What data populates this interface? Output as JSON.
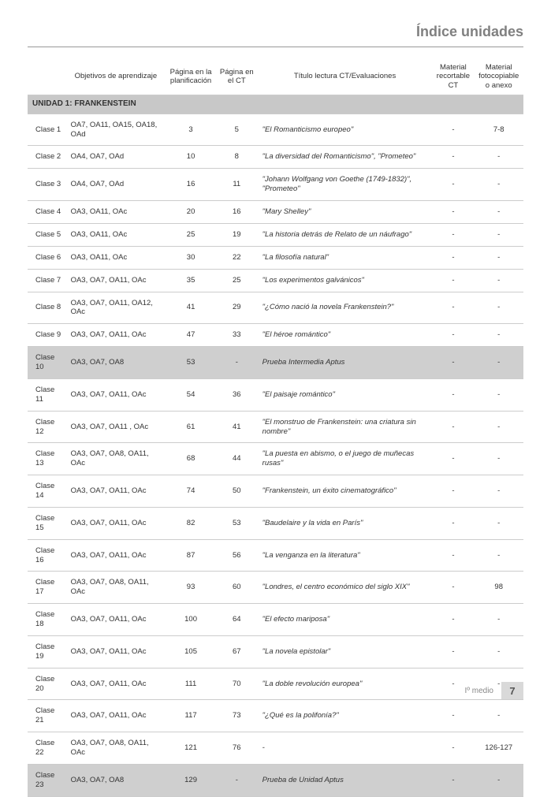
{
  "pageTitle": "Índice unidades",
  "headers": {
    "clase": "",
    "obj": "Objetivos de aprendizaje",
    "plan": "Página en la planificación",
    "ct": "Página en el CT",
    "titulo": "Título lectura CT/Evaluaciones",
    "rec": "Material recortable CT",
    "anexo": "Material fotocopiable o anexo"
  },
  "unitHeader": "UNIDAD 1: FRANKENSTEIN",
  "rows": [
    {
      "clase": "Clase 1",
      "obj": "OA7, OA11, OA15, OA18, OAd",
      "plan": "3",
      "ct": "5",
      "titulo": "\"El Romanticismo europeo\"",
      "rec": "-",
      "anexo": "7-8",
      "shaded": false
    },
    {
      "clase": "Clase 2",
      "obj": "OA4, OA7, OAd",
      "plan": "10",
      "ct": "8",
      "titulo": "\"La diversidad del Romanticismo\", \"Prometeo\"",
      "rec": "-",
      "anexo": "-",
      "shaded": false
    },
    {
      "clase": "Clase 3",
      "obj": "OA4, OA7, OAd",
      "plan": "16",
      "ct": "11",
      "titulo": "\"Johann Wolfgang von Goethe (1749-1832)\", \"Prometeo\"",
      "rec": "-",
      "anexo": "-",
      "shaded": false
    },
    {
      "clase": "Clase 4",
      "obj": "OA3, OA11, OAc",
      "plan": "20",
      "ct": "16",
      "titulo": "\"Mary Shelley\"",
      "rec": "-",
      "anexo": "-",
      "shaded": false
    },
    {
      "clase": "Clase 5",
      "obj": "OA3, OA11, OAc",
      "plan": "25",
      "ct": "19",
      "titulo": "\"La historia detrás de Relato de un náufrago\"",
      "rec": "-",
      "anexo": "-",
      "shaded": false
    },
    {
      "clase": "Clase 6",
      "obj": "OA3, OA11, OAc",
      "plan": "30",
      "ct": "22",
      "titulo": "\"La filosofía natural\"",
      "rec": "-",
      "anexo": "-",
      "shaded": false
    },
    {
      "clase": "Clase 7",
      "obj": "OA3, OA7, OA11, OAc",
      "plan": "35",
      "ct": "25",
      "titulo": "\"Los experimentos galvánicos\"",
      "rec": "-",
      "anexo": "-",
      "shaded": false
    },
    {
      "clase": "Clase 8",
      "obj": "OA3, OA7, OA11, OA12, OAc",
      "plan": "41",
      "ct": "29",
      "titulo": "\"¿Cómo nació la novela Frankenstein?\"",
      "rec": "-",
      "anexo": "-",
      "shaded": false
    },
    {
      "clase": "Clase 9",
      "obj": "OA3, OA7, OA11, OAc",
      "plan": "47",
      "ct": "33",
      "titulo": "\"El héroe romántico\"",
      "rec": "-",
      "anexo": "-",
      "shaded": false
    },
    {
      "clase": "Clase 10",
      "obj": "OA3, OA7, OA8",
      "plan": "53",
      "ct": "-",
      "titulo": "Prueba Intermedia Aptus",
      "rec": "-",
      "anexo": "-",
      "shaded": true
    },
    {
      "clase": "Clase 11",
      "obj": "OA3, OA7, OA11, OAc",
      "plan": "54",
      "ct": "36",
      "titulo": "\"El paisaje romántico\"",
      "rec": "-",
      "anexo": "-",
      "shaded": false
    },
    {
      "clase": "Clase 12",
      "obj": "OA3, OA7, OA11 , OAc",
      "plan": "61",
      "ct": "41",
      "titulo": "\"El monstruo de Frankenstein: una criatura sin nombre\"",
      "rec": "-",
      "anexo": "-",
      "shaded": false
    },
    {
      "clase": "Clase 13",
      "obj": "OA3, OA7, OA8, OA11, OAc",
      "plan": "68",
      "ct": "44",
      "titulo": "\"La puesta en abismo, o el juego de muñecas rusas\"",
      "rec": "-",
      "anexo": "-",
      "shaded": false
    },
    {
      "clase": "Clase 14",
      "obj": "OA3, OA7, OA11, OAc",
      "plan": "74",
      "ct": "50",
      "titulo": "\"Frankenstein, un éxito cinematográfico\"",
      "rec": "-",
      "anexo": "-",
      "shaded": false
    },
    {
      "clase": "Clase 15",
      "obj": "OA3, OA7, OA11, OAc",
      "plan": "82",
      "ct": "53",
      "titulo": "\"Baudelaire y la vida en París\"",
      "rec": "-",
      "anexo": "-",
      "shaded": false
    },
    {
      "clase": "Clase 16",
      "obj": "OA3, OA7, OA11, OAc",
      "plan": "87",
      "ct": "56",
      "titulo": "\"La venganza en la literatura\"",
      "rec": "-",
      "anexo": "-",
      "shaded": false
    },
    {
      "clase": "Clase 17",
      "obj": "OA3, OA7, OA8, OA11, OAc",
      "plan": "93",
      "ct": "60",
      "titulo": "\"Londres, el centro económico del siglo XIX\"",
      "rec": "-",
      "anexo": "98",
      "shaded": false
    },
    {
      "clase": "Clase 18",
      "obj": "OA3, OA7, OA11, OAc",
      "plan": "100",
      "ct": "64",
      "titulo": "\"El efecto mariposa\"",
      "rec": "-",
      "anexo": "-",
      "shaded": false
    },
    {
      "clase": "Clase 19",
      "obj": "OA3, OA7, OA11, OAc",
      "plan": "105",
      "ct": "67",
      "titulo": "\"La novela epistolar\"",
      "rec": "-",
      "anexo": "-",
      "shaded": false
    },
    {
      "clase": "Clase 20",
      "obj": "OA3, OA7, OA11, OAc",
      "plan": "111",
      "ct": "70",
      "titulo": "\"La doble revolución europea\"",
      "rec": "-",
      "anexo": "-",
      "shaded": false
    },
    {
      "clase": "Clase 21",
      "obj": "OA3, OA7, OA11, OAc",
      "plan": "117",
      "ct": "73",
      "titulo": "\"¿Qué es la polifonía?\"",
      "rec": "-",
      "anexo": "-",
      "shaded": false
    },
    {
      "clase": "Clase 22",
      "obj": "OA3, OA7, OA8, OA11, OAc",
      "plan": "121",
      "ct": "76",
      "titulo": "-",
      "rec": "-",
      "anexo": "126-127",
      "shaded": false
    },
    {
      "clase": "Clase 23",
      "obj": "OA3, OA7, OA8",
      "plan": "129",
      "ct": "-",
      "titulo": "Prueba de Unidad Aptus",
      "rec": "-",
      "anexo": "-",
      "shaded": true
    }
  ],
  "footer": {
    "label": "Iº medio",
    "page": "7"
  }
}
